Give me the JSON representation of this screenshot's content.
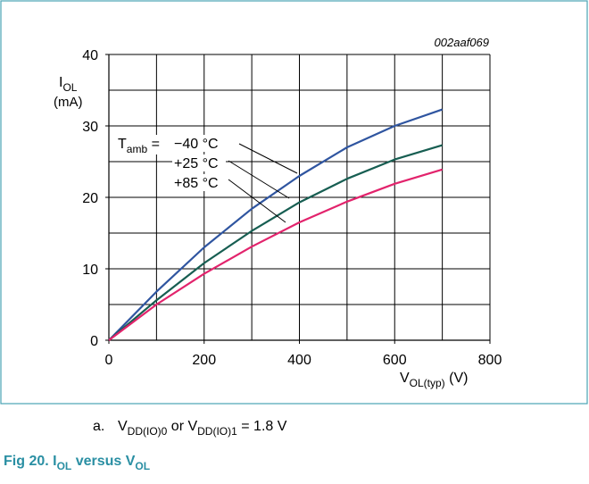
{
  "chart_data": {
    "type": "line",
    "code": "002aaf069",
    "ylabel": [
      {
        "text": "I"
      },
      {
        "text": "OL",
        "sub": true
      }
    ],
    "yunit": "(mA)",
    "xlabel": [
      {
        "text": "V"
      },
      {
        "text": "OL(typ)",
        "sub": true
      },
      {
        "text": " (V)"
      }
    ],
    "annotation_prefix": [
      {
        "text": "T"
      },
      {
        "text": "amb",
        "sub": true
      },
      {
        "text": " = "
      }
    ],
    "x": [
      0,
      100,
      200,
      300,
      400,
      500,
      600,
      700
    ],
    "series": [
      {
        "name": "−40 °C",
        "color": "#2f55a0",
        "values": [
          0,
          6.8,
          13,
          18.4,
          23,
          27,
          30,
          32.3
        ]
      },
      {
        "name": "+25 °C",
        "color": "#175e52",
        "values": [
          0,
          5.6,
          10.8,
          15.3,
          19.3,
          22.6,
          25.3,
          27.3
        ]
      },
      {
        "name": "+85 °C",
        "color": "#e2236c",
        "values": [
          0,
          5,
          9.3,
          13.1,
          16.5,
          19.4,
          21.9,
          23.9
        ]
      }
    ],
    "xlim": [
      0,
      800
    ],
    "ylim": [
      0,
      40
    ],
    "xticks": [
      0,
      200,
      400,
      600,
      800
    ],
    "yticks": [
      0,
      10,
      20,
      30,
      40
    ],
    "xgrid": [
      100,
      200,
      300,
      400,
      500,
      600,
      700,
      800
    ],
    "ygrid": [
      5,
      10,
      15,
      20,
      25,
      30,
      35,
      40
    ],
    "caption_label": "a.",
    "caption": [
      {
        "text": "V"
      },
      {
        "text": "DD(IO)0",
        "sub": true
      },
      {
        "text": " or V"
      },
      {
        "text": "DD(IO)1",
        "sub": true
      },
      {
        "text": " = 1.8 V"
      }
    ],
    "figure_title": [
      {
        "text": "Fig 20.  I"
      },
      {
        "text": "OL",
        "sub": true
      },
      {
        "text": " versus V"
      },
      {
        "text": "OL",
        "sub": true
      }
    ]
  }
}
